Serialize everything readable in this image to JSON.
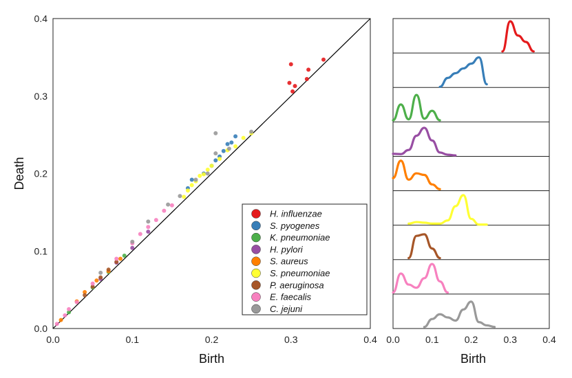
{
  "chart_data": [
    {
      "type": "scatter",
      "xlabel": "Birth",
      "ylabel": "Death",
      "xlim": [
        0.0,
        0.4
      ],
      "ylim": [
        0.0,
        0.4
      ],
      "xticks": [
        "0.0",
        "0.1",
        "0.2",
        "0.3",
        "0.4"
      ],
      "yticks": [
        "0.0",
        "0.1",
        "0.2",
        "0.3",
        "0.4"
      ],
      "diagonal": true,
      "legend_position": "bottom-right",
      "series": [
        {
          "name": "H. influenzae",
          "color": "#e41a1c",
          "points": [
            [
              0.298,
              0.317
            ],
            [
              0.302,
              0.306
            ],
            [
              0.305,
              0.313
            ],
            [
              0.3,
              0.341
            ],
            [
              0.32,
              0.322
            ],
            [
              0.322,
              0.334
            ],
            [
              0.341,
              0.347
            ]
          ]
        },
        {
          "name": "S. pyogenes",
          "color": "#377eb8",
          "points": [
            [
              0.17,
              0.181
            ],
            [
              0.175,
              0.192
            ],
            [
              0.19,
              0.2
            ],
            [
              0.2,
              0.21
            ],
            [
              0.205,
              0.217
            ],
            [
              0.21,
              0.222
            ],
            [
              0.215,
              0.229
            ],
            [
              0.22,
              0.238
            ],
            [
              0.23,
              0.248
            ],
            [
              0.225,
              0.24
            ]
          ]
        },
        {
          "name": "K. pneumoniae",
          "color": "#4daf4a",
          "points": [
            [
              0.02,
              0.021
            ],
            [
              0.05,
              0.053
            ],
            [
              0.07,
              0.073
            ],
            [
              0.09,
              0.094
            ]
          ]
        },
        {
          "name": "H. pylori",
          "color": "#984ea3",
          "points": [
            [
              0.06,
              0.064
            ],
            [
              0.08,
              0.085
            ],
            [
              0.1,
              0.104
            ],
            [
              0.12,
              0.125
            ]
          ]
        },
        {
          "name": "S. aureus",
          "color": "#ff7f00",
          "points": [
            [
              0.01,
              0.011
            ],
            [
              0.03,
              0.035
            ],
            [
              0.04,
              0.047
            ],
            [
              0.055,
              0.062
            ],
            [
              0.07,
              0.074
            ],
            [
              0.085,
              0.09
            ]
          ]
        },
        {
          "name": "S. pneumoniae",
          "color": "#ffff33",
          "points": [
            [
              0.165,
              0.17
            ],
            [
              0.17,
              0.178
            ],
            [
              0.175,
              0.185
            ],
            [
              0.18,
              0.19
            ],
            [
              0.185,
              0.197
            ],
            [
              0.19,
              0.199
            ],
            [
              0.195,
              0.205
            ],
            [
              0.2,
              0.21
            ],
            [
              0.21,
              0.219
            ],
            [
              0.22,
              0.23
            ],
            [
              0.23,
              0.235
            ],
            [
              0.24,
              0.246
            ],
            [
              0.25,
              0.252
            ]
          ]
        },
        {
          "name": "P. aeruginosa",
          "color": "#a65628",
          "points": [
            [
              0.04,
              0.043
            ],
            [
              0.05,
              0.054
            ],
            [
              0.06,
              0.066
            ],
            [
              0.07,
              0.076
            ],
            [
              0.08,
              0.086
            ]
          ]
        },
        {
          "name": "E. faecalis",
          "color": "#f781bf",
          "points": [
            [
              0.005,
              0.006
            ],
            [
              0.015,
              0.017
            ],
            [
              0.02,
              0.025
            ],
            [
              0.03,
              0.034
            ],
            [
              0.05,
              0.058
            ],
            [
              0.08,
              0.09
            ],
            [
              0.1,
              0.11
            ],
            [
              0.11,
              0.122
            ],
            [
              0.12,
              0.131
            ],
            [
              0.13,
              0.14
            ],
            [
              0.14,
              0.152
            ],
            [
              0.15,
              0.159
            ]
          ]
        },
        {
          "name": "C. jejuni",
          "color": "#999999",
          "points": [
            [
              0.06,
              0.072
            ],
            [
              0.1,
              0.112
            ],
            [
              0.12,
              0.138
            ],
            [
              0.145,
              0.16
            ],
            [
              0.16,
              0.171
            ],
            [
              0.18,
              0.192
            ],
            [
              0.195,
              0.2
            ],
            [
              0.205,
              0.226
            ],
            [
              0.205,
              0.252
            ],
            [
              0.222,
              0.232
            ],
            [
              0.25,
              0.254
            ]
          ]
        }
      ]
    },
    {
      "type": "area",
      "xlabel": "Birth",
      "xlim": [
        0.0,
        0.4
      ],
      "xticks": [
        "0.0",
        "0.1",
        "0.2",
        "0.3",
        "0.4"
      ],
      "x": [
        0.0,
        0.02,
        0.04,
        0.06,
        0.08,
        0.1,
        0.12,
        0.14,
        0.16,
        0.18,
        0.2,
        0.22,
        0.24,
        0.26,
        0.28,
        0.3,
        0.32,
        0.34,
        0.36,
        0.38,
        0.4
      ],
      "panels": [
        {
          "name": "H. influenzae",
          "color": "#e41a1c",
          "values": [
            0,
            0,
            0,
            0,
            0,
            0,
            0,
            0,
            0,
            0,
            0,
            0,
            0,
            0,
            0.05,
            1.0,
            0.55,
            0.35,
            0.05,
            0,
            0
          ]
        },
        {
          "name": "S. pyogenes",
          "color": "#377eb8",
          "values": [
            0,
            0,
            0,
            0,
            0,
            0,
            0.02,
            0.3,
            0.45,
            0.6,
            0.75,
            0.95,
            0.1,
            0,
            0,
            0,
            0,
            0,
            0,
            0,
            0
          ]
        },
        {
          "name": "K. pneumoniae",
          "color": "#4daf4a",
          "values": [
            0.05,
            0.55,
            0.08,
            0.85,
            0.1,
            0.35,
            0.05,
            0,
            0,
            0,
            0,
            0,
            0,
            0,
            0,
            0,
            0,
            0,
            0,
            0,
            0
          ]
        },
        {
          "name": "H. pylori",
          "color": "#984ea3",
          "values": [
            0.08,
            0.07,
            0.2,
            0.65,
            0.9,
            0.5,
            0.12,
            0.05,
            0.03,
            0,
            0,
            0,
            0,
            0,
            0,
            0,
            0,
            0,
            0,
            0,
            0
          ]
        },
        {
          "name": "S. aureus",
          "color": "#ff7f00",
          "values": [
            0.4,
            0.95,
            0.35,
            0.55,
            0.5,
            0.2,
            0.05,
            0,
            0,
            0,
            0,
            0,
            0,
            0,
            0,
            0,
            0,
            0,
            0,
            0,
            0
          ]
        },
        {
          "name": "S. pneumoniae",
          "color": "#ffff33",
          "values": [
            0,
            0,
            0.05,
            0.1,
            0.08,
            0.05,
            0.05,
            0.15,
            0.6,
            0.95,
            0.2,
            0.02,
            0.02,
            0,
            0,
            0,
            0,
            0,
            0,
            0,
            0
          ]
        },
        {
          "name": "P. aeruginosa",
          "color": "#a65628",
          "values": [
            0,
            0,
            0.05,
            0.75,
            0.8,
            0.35,
            0.05,
            0,
            0,
            0,
            0,
            0,
            0,
            0,
            0,
            0,
            0,
            0,
            0,
            0,
            0
          ]
        },
        {
          "name": "E. faecalis",
          "color": "#f781bf",
          "values": [
            0.05,
            0.65,
            0.3,
            0.2,
            0.5,
            0.95,
            0.4,
            0.05,
            0,
            0,
            0,
            0,
            0,
            0,
            0,
            0,
            0,
            0,
            0,
            0,
            0
          ]
        },
        {
          "name": "C. jejuni",
          "color": "#999999",
          "values": [
            0,
            0,
            0,
            0,
            0.05,
            0.3,
            0.45,
            0.35,
            0.25,
            0.6,
            0.85,
            0.2,
            0.1,
            0.05,
            0,
            0,
            0,
            0,
            0,
            0,
            0
          ]
        }
      ]
    }
  ]
}
